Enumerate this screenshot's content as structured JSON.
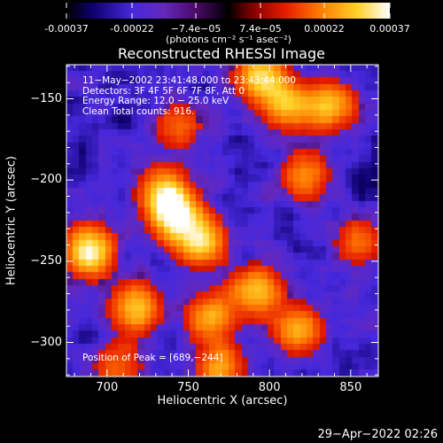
{
  "chart_data": {
    "type": "heatmap",
    "title": "Reconstructed RHESSI Image",
    "xlabel": "Heliocentric X (arcsec)",
    "ylabel": "Heliocentric Y (arcsec)",
    "xlim": [
      675,
      867
    ],
    "ylim": [
      -321,
      -129
    ],
    "x_ticks": [
      700,
      750,
      800,
      850
    ],
    "x_tick_labels": [
      "700",
      "750",
      "800",
      "850"
    ],
    "y_ticks": [
      -150,
      -200,
      -250,
      -300
    ],
    "y_tick_labels": [
      "−150",
      "−200",
      "−250",
      "−300"
    ],
    "colorbar": {
      "min": -0.00037,
      "max": 0.00037,
      "tick_values": [
        -0.00037,
        -0.00022,
        -7.4e-05,
        7.4e-05,
        0.00022,
        0.00037
      ],
      "tick_labels": [
        "-0.00037",
        "-0.00022",
        "−7.4e−05",
        "7.4e−05",
        "0.00022",
        "0.00037"
      ],
      "unit_label": "(photons cm⁻² s⁻¹ asec⁻²)"
    },
    "annotations": [
      "11−May−2002 23:41:48.000 to 23:43:44.000",
      "Detectors: 3F 4F 5F 6F 7F 8F, Att 0",
      "Energy Range: 12.0 − 25.0 keV",
      "Clean     Total counts: 916."
    ],
    "peak_label": "Position of Peak = [689,−244]",
    "peak": [
      689,
      -244
    ],
    "bright_regions": [
      {
        "x": 689,
        "y": -244,
        "intensity": 1.0
      },
      {
        "x": 742,
        "y": -222,
        "intensity": 0.9
      },
      {
        "x": 758,
        "y": -238,
        "intensity": 0.85
      },
      {
        "x": 795,
        "y": -137,
        "intensity": 0.85
      },
      {
        "x": 718,
        "y": -279,
        "intensity": 0.8
      },
      {
        "x": 735,
        "y": -207,
        "intensity": 0.75
      },
      {
        "x": 838,
        "y": -155,
        "intensity": 0.75
      },
      {
        "x": 792,
        "y": -268,
        "intensity": 0.75
      },
      {
        "x": 812,
        "y": -155,
        "intensity": 0.65
      },
      {
        "x": 818,
        "y": -292,
        "intensity": 0.7
      },
      {
        "x": 764,
        "y": -285,
        "intensity": 0.65
      },
      {
        "x": 770,
        "y": -316,
        "intensity": 0.65
      },
      {
        "x": 822,
        "y": -198,
        "intensity": 0.6
      },
      {
        "x": 855,
        "y": -238,
        "intensity": 0.5
      },
      {
        "x": 707,
        "y": -316,
        "intensity": 0.5
      },
      {
        "x": 744,
        "y": -167,
        "intensity": 0.45
      }
    ]
  },
  "timestamp": "29−Apr−2022 02:26"
}
